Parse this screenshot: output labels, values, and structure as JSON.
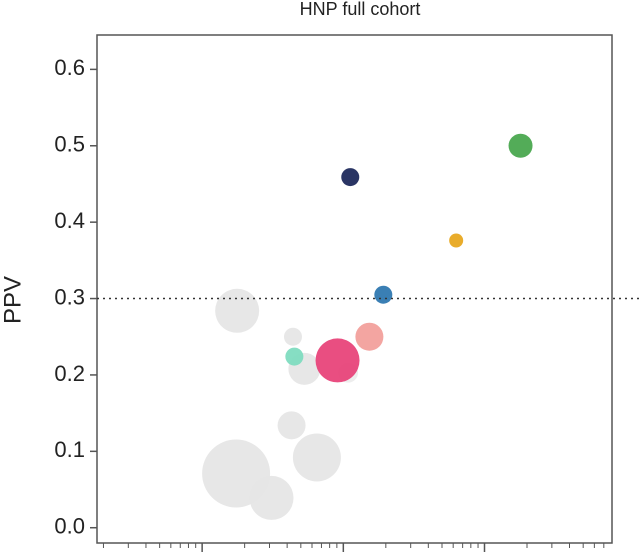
{
  "chart_data": {
    "type": "bubble",
    "title": "HNP full cohort",
    "y_label": "PPV",
    "x_log": true,
    "x": [
      1.74,
      3.1,
      6.5,
      4.3,
      1.77,
      4.4,
      5.3,
      10.8,
      180,
      11.2,
      63,
      19.2,
      15.3,
      9.1,
      4.5
    ],
    "y": [
      0.071,
      0.039,
      0.092,
      0.134,
      0.284,
      0.25,
      0.208,
      0.203,
      0.5,
      0.459,
      0.376,
      0.305,
      0.25,
      0.219,
      0.224
    ],
    "sizes": [
      34,
      22,
      24,
      14,
      22,
      9,
      16,
      10,
      12,
      9,
      7,
      9,
      14,
      22,
      9
    ],
    "colors": [
      "#e6e6e6",
      "#e6e6e6",
      "#e6e6e6",
      "#e6e6e6",
      "#e6e6e6",
      "#e6e6e6",
      "#e6e6e6",
      "#ececec",
      "#4aa84f",
      "#1f2a5c",
      "#e8a820",
      "#2f78b0",
      "#f2a09c",
      "#e8457a",
      "#7fdcc0"
    ],
    "xlim": [
      0.18,
      800
    ],
    "xticks": [
      1,
      10,
      100
    ],
    "ylim": [
      -0.02,
      0.645
    ],
    "yticks": [
      0.0,
      0.1,
      0.2,
      0.3,
      0.4,
      0.5,
      0.6
    ],
    "hline": 0.3
  }
}
